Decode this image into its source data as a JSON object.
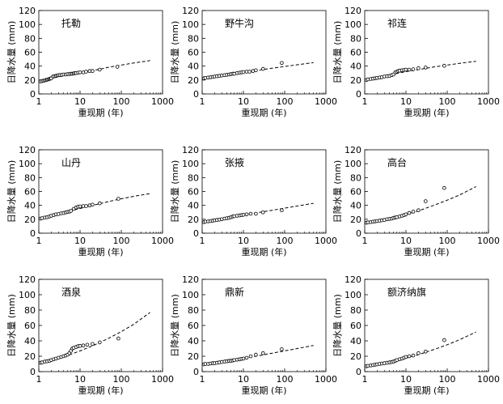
{
  "figure": {
    "xlabel": "重现期 (年)",
    "ylabel": "日降水量 (mm)"
  },
  "chart_data": [
    {
      "type": "scatter",
      "title": "托勒",
      "xlabel": "重现期 (年)",
      "ylabel": "日降水量 (mm)",
      "xscale": "log",
      "xlim": [
        1,
        1000
      ],
      "ylim": [
        0,
        120
      ],
      "xticks": [
        1,
        10,
        100,
        1000
      ],
      "yticks": [
        0,
        20,
        40,
        60,
        80,
        100,
        120
      ],
      "series": [
        {
          "name": "observed",
          "style": "open-circle",
          "x": [
            1.1,
            1.2,
            1.3,
            1.4,
            1.5,
            1.6,
            1.7,
            1.8,
            1.9,
            2.0,
            2.2,
            2.4,
            2.6,
            2.8,
            3.0,
            3.3,
            3.6,
            4.0,
            4.5,
            5.0,
            5.5,
            6.0,
            6.5,
            7.0,
            7.5,
            8.0,
            9.0,
            10.0,
            12,
            14,
            17,
            20,
            30,
            80
          ],
          "y": [
            18,
            18.5,
            19,
            19.5,
            20,
            20.5,
            21,
            21.5,
            22,
            22.5,
            25,
            25.5,
            26,
            26.5,
            27,
            27,
            27.5,
            28,
            28,
            28.5,
            28.5,
            29,
            29,
            29.5,
            30,
            30,
            30.5,
            31,
            31,
            32,
            33,
            33,
            35,
            39
          ]
        },
        {
          "name": "fitted",
          "style": "dashed-line",
          "x": [
            1,
            1.5,
            2,
            3,
            5,
            7,
            10,
            20,
            30,
            50,
            70,
            100,
            200,
            300,
            500
          ],
          "y": [
            18,
            20.5,
            22.5,
            24.5,
            27,
            28.5,
            30,
            33.5,
            35.5,
            38.5,
            40,
            41.5,
            44.5,
            46,
            48
          ]
        }
      ]
    },
    {
      "type": "scatter",
      "title": "野牛沟",
      "xlabel": "重现期 (年)",
      "ylabel": "日降水量 (mm)",
      "xscale": "log",
      "xlim": [
        1,
        1000
      ],
      "ylim": [
        0,
        120
      ],
      "xticks": [
        1,
        10,
        100,
        1000
      ],
      "yticks": [
        0,
        20,
        40,
        60,
        80,
        100,
        120
      ],
      "series": [
        {
          "name": "observed",
          "style": "open-circle",
          "x": [
            1.1,
            1.2,
            1.4,
            1.6,
            1.8,
            2.0,
            2.3,
            2.6,
            3.0,
            3.5,
            4.0,
            4.5,
            5.0,
            5.5,
            6.0,
            7.0,
            8.0,
            9.0,
            10,
            12,
            14,
            17,
            20,
            30,
            85
          ],
          "y": [
            22.5,
            23,
            23.5,
            24,
            24.5,
            25,
            25.5,
            26,
            26.5,
            27,
            27.5,
            28,
            28.5,
            29,
            29,
            30,
            30.5,
            31,
            31.5,
            32,
            32,
            33,
            34,
            36,
            44.5
          ]
        },
        {
          "name": "fitted",
          "style": "dashed-line",
          "x": [
            1,
            2,
            3,
            5,
            10,
            20,
            50,
            100,
            200,
            500
          ],
          "y": [
            22,
            25,
            26.5,
            28.5,
            31,
            33.5,
            37,
            39.5,
            42,
            45
          ]
        }
      ]
    },
    {
      "type": "scatter",
      "title": "祁连",
      "xlabel": "重现期 (年)",
      "ylabel": "日降水量 (mm)",
      "xscale": "log",
      "xlim": [
        1,
        1000
      ],
      "ylim": [
        0,
        120
      ],
      "xticks": [
        1,
        10,
        100,
        1000
      ],
      "yticks": [
        0,
        20,
        40,
        60,
        80,
        100,
        120
      ],
      "series": [
        {
          "name": "observed",
          "style": "open-circle",
          "x": [
            1.1,
            1.2,
            1.4,
            1.6,
            1.8,
            2.0,
            2.3,
            2.6,
            3.0,
            3.5,
            4.0,
            4.5,
            5.0,
            5.5,
            6.0,
            6.5,
            7.0,
            8.0,
            9.0,
            10,
            12,
            15,
            20,
            30,
            85
          ],
          "y": [
            20,
            21,
            21.5,
            22,
            22.5,
            23,
            23.5,
            24,
            25,
            25.5,
            26,
            27,
            28,
            31,
            32,
            33,
            33.5,
            34,
            34.5,
            35,
            35,
            35.5,
            37,
            38,
            40.5
          ]
        },
        {
          "name": "fitted",
          "style": "dashed-line",
          "x": [
            1,
            2,
            3,
            5,
            10,
            20,
            50,
            100,
            200,
            500
          ],
          "y": [
            20,
            23.5,
            25.5,
            28.5,
            32,
            35,
            39,
            41.5,
            44,
            47
          ]
        }
      ]
    },
    {
      "type": "scatter",
      "title": "山丹",
      "xlabel": "重现期 (年)",
      "ylabel": "日降水量 (mm)",
      "xscale": "log",
      "xlim": [
        1,
        1000
      ],
      "ylim": [
        0,
        120
      ],
      "xticks": [
        1,
        10,
        100,
        1000
      ],
      "yticks": [
        0,
        20,
        40,
        60,
        80,
        100,
        120
      ],
      "series": [
        {
          "name": "observed",
          "style": "open-circle",
          "x": [
            1.1,
            1.2,
            1.4,
            1.6,
            1.8,
            2.0,
            2.3,
            2.6,
            3.0,
            3.5,
            4.0,
            4.5,
            5.0,
            5.5,
            6.0,
            7.0,
            8.0,
            9.0,
            10,
            12,
            14,
            17,
            20,
            30,
            85
          ],
          "y": [
            21,
            21.5,
            22.5,
            23,
            24,
            25,
            26,
            27,
            27.5,
            28.5,
            29,
            30,
            30.5,
            31,
            32,
            35,
            37,
            38,
            38.5,
            39,
            39,
            40,
            41,
            43,
            49.5
          ]
        },
        {
          "name": "fitted",
          "style": "dashed-line",
          "x": [
            1,
            2,
            3,
            5,
            10,
            20,
            50,
            100,
            200,
            500
          ],
          "y": [
            20,
            25,
            27.5,
            31,
            35.5,
            40,
            45.5,
            49.5,
            53,
            57
          ]
        }
      ]
    },
    {
      "type": "scatter",
      "title": "张掖",
      "xlabel": "重现期 (年)",
      "ylabel": "日降水量 (mm)",
      "xscale": "log",
      "xlim": [
        1,
        1000
      ],
      "ylim": [
        0,
        120
      ],
      "xticks": [
        1,
        10,
        100,
        1000
      ],
      "yticks": [
        0,
        20,
        40,
        60,
        80,
        100,
        120
      ],
      "series": [
        {
          "name": "observed",
          "style": "open-circle",
          "x": [
            1.1,
            1.2,
            1.4,
            1.6,
            1.8,
            2.0,
            2.3,
            2.6,
            3.0,
            3.5,
            4.0,
            4.5,
            5.0,
            5.5,
            6.0,
            7.0,
            8.0,
            9.0,
            10,
            12,
            15,
            20,
            30,
            85
          ],
          "y": [
            16,
            16.5,
            17,
            17.5,
            18,
            18.5,
            19,
            19.5,
            20,
            21,
            21.5,
            22,
            23,
            24,
            24.5,
            25,
            25.5,
            26,
            26.5,
            27,
            28,
            28,
            30,
            33
          ]
        },
        {
          "name": "fitted",
          "style": "dashed-line",
          "x": [
            1,
            2,
            3,
            5,
            10,
            20,
            50,
            100,
            200,
            500
          ],
          "y": [
            15.5,
            18.5,
            20.5,
            23,
            26,
            29,
            33,
            36,
            39,
            43
          ]
        }
      ]
    },
    {
      "type": "scatter",
      "title": "高台",
      "xlabel": "重现期 (年)",
      "ylabel": "日降水量 (mm)",
      "xscale": "log",
      "xlim": [
        1,
        1000
      ],
      "ylim": [
        0,
        120
      ],
      "xticks": [
        1,
        10,
        100,
        1000
      ],
      "yticks": [
        0,
        20,
        40,
        60,
        80,
        100,
        120
      ],
      "series": [
        {
          "name": "observed",
          "style": "open-circle",
          "x": [
            1.1,
            1.2,
            1.4,
            1.6,
            1.8,
            2.0,
            2.3,
            2.6,
            3.0,
            3.5,
            4.0,
            4.5,
            5.0,
            5.5,
            6.0,
            7.0,
            8.0,
            9.0,
            10,
            12,
            15,
            20,
            30,
            85
          ],
          "y": [
            15,
            15.5,
            16,
            16.5,
            17,
            17.5,
            18,
            18.5,
            19,
            20,
            20.5,
            21,
            22,
            22.5,
            23,
            24,
            25,
            26,
            27,
            29,
            31,
            33,
            46,
            65
          ]
        },
        {
          "name": "fitted",
          "style": "dashed-line",
          "x": [
            1,
            2,
            3,
            5,
            10,
            20,
            50,
            100,
            200,
            500
          ],
          "y": [
            14.5,
            17.5,
            19.5,
            22.5,
            27,
            32,
            40.5,
            47.5,
            55,
            67
          ]
        }
      ]
    },
    {
      "type": "scatter",
      "title": "酒泉",
      "xlabel": "重现期 (年)",
      "ylabel": "日降水量 (mm)",
      "xscale": "log",
      "xlim": [
        1,
        1000
      ],
      "ylim": [
        0,
        120
      ],
      "xticks": [
        1,
        10,
        100,
        1000
      ],
      "yticks": [
        0,
        20,
        40,
        60,
        80,
        100,
        120
      ],
      "series": [
        {
          "name": "observed",
          "style": "open-circle",
          "x": [
            1.1,
            1.2,
            1.4,
            1.6,
            1.8,
            2.0,
            2.3,
            2.6,
            3.0,
            3.5,
            4.0,
            4.5,
            5.0,
            5.5,
            6.0,
            6.5,
            7.0,
            8.0,
            9.0,
            10,
            12,
            15,
            20,
            30,
            85
          ],
          "y": [
            11.5,
            12,
            13,
            13.5,
            14,
            15,
            16,
            17,
            18,
            19,
            20,
            21,
            22,
            24,
            27,
            30,
            31,
            32,
            33,
            33.5,
            34,
            35,
            36,
            38,
            43
          ]
        },
        {
          "name": "fitted",
          "style": "dashed-line",
          "x": [
            1,
            2,
            3,
            5,
            10,
            20,
            50,
            100,
            200,
            500
          ],
          "y": [
            11,
            15,
            17.5,
            21,
            27,
            33.5,
            43.5,
            52,
            61.5,
            77
          ]
        }
      ]
    },
    {
      "type": "scatter",
      "title": "鼎新",
      "xlabel": "重现期 (年)",
      "ylabel": "日降水量 (mm)",
      "xscale": "log",
      "xlim": [
        1,
        1000
      ],
      "ylim": [
        0,
        120
      ],
      "xticks": [
        1,
        10,
        100,
        1000
      ],
      "yticks": [
        0,
        20,
        40,
        60,
        80,
        100,
        120
      ],
      "series": [
        {
          "name": "observed",
          "style": "open-circle",
          "x": [
            1.1,
            1.2,
            1.4,
            1.6,
            1.8,
            2.0,
            2.3,
            2.6,
            3.0,
            3.5,
            4.0,
            4.5,
            5.0,
            5.5,
            6.0,
            7.0,
            8.0,
            9.0,
            10,
            12,
            15,
            20,
            30,
            85
          ],
          "y": [
            9.5,
            10,
            10,
            10.5,
            11,
            11,
            11.5,
            12,
            12.5,
            13,
            13.5,
            14,
            14,
            14.5,
            15,
            15.5,
            16,
            16.5,
            17,
            18,
            20,
            22,
            24,
            29
          ]
        },
        {
          "name": "fitted",
          "style": "dashed-line",
          "x": [
            1,
            2,
            3,
            5,
            10,
            20,
            50,
            100,
            200,
            500
          ],
          "y": [
            9.5,
            11.5,
            13,
            15,
            17.5,
            20,
            24,
            27,
            30,
            34
          ]
        }
      ]
    },
    {
      "type": "scatter",
      "title": "额济纳旗",
      "xlabel": "重现期 (年)",
      "ylabel": "日降水量 (mm)",
      "xscale": "log",
      "xlim": [
        1,
        1000
      ],
      "ylim": [
        0,
        120
      ],
      "xticks": [
        1,
        10,
        100,
        1000
      ],
      "yticks": [
        0,
        20,
        40,
        60,
        80,
        100,
        120
      ],
      "series": [
        {
          "name": "observed",
          "style": "open-circle",
          "x": [
            1.1,
            1.2,
            1.4,
            1.6,
            1.8,
            2.0,
            2.3,
            2.6,
            3.0,
            3.5,
            4.0,
            4.5,
            5.0,
            5.5,
            6.0,
            7.0,
            8.0,
            9.0,
            10,
            12,
            15,
            20,
            30,
            85
          ],
          "y": [
            7,
            7.5,
            8,
            8.5,
            9,
            9.5,
            10,
            10.5,
            11,
            11.5,
            12,
            12.5,
            13,
            14,
            15,
            16,
            17,
            18,
            19,
            20,
            21,
            24,
            26,
            41
          ]
        },
        {
          "name": "fitted",
          "style": "dashed-line",
          "x": [
            1,
            2,
            3,
            5,
            10,
            20,
            50,
            100,
            200,
            500
          ],
          "y": [
            7,
            9.5,
            11,
            13.5,
            17.5,
            22,
            29,
            35,
            41.5,
            51.5
          ]
        }
      ]
    }
  ]
}
